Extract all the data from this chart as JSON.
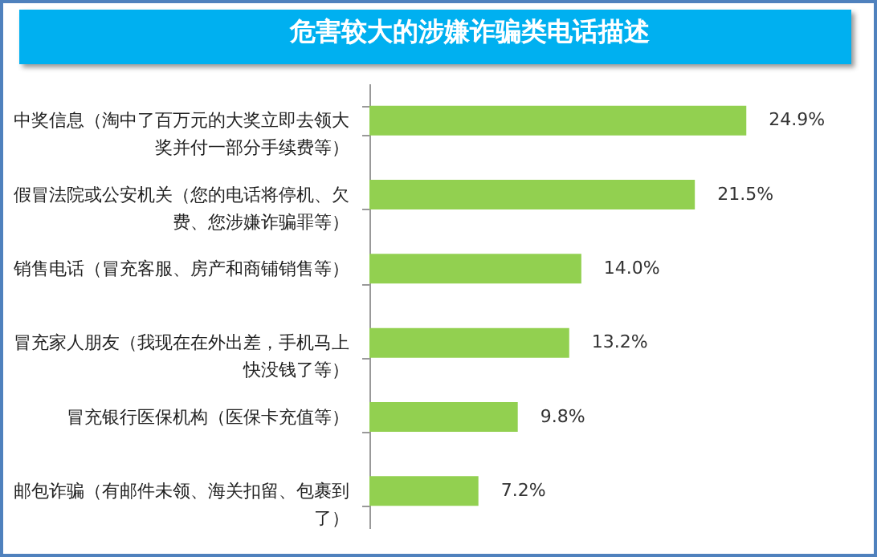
{
  "chart_data": {
    "type": "bar",
    "orientation": "horizontal",
    "title": "危害较大的涉嫌诈骗类电话描述",
    "categories": [
      "中奖信息（淘中了百万元的大奖立即去领大奖并付一部分手续费等）",
      "假冒法院或公安机关（您的电话将停机、欠费、您涉嫌诈骗罪等）",
      "销售电话（冒充客服、房产和商铺销售等）",
      "冒充家人朋友（我现在在外出差，手机马上快没钱了等）",
      "冒充银行医保机构（医保卡充值等）",
      "邮包诈骗（有邮件未领、海关扣留、包裹到了）"
    ],
    "values": [
      24.9,
      21.5,
      14.0,
      13.2,
      9.8,
      7.2
    ],
    "value_labels": [
      "24.9%",
      "21.5%",
      "14.0%",
      "13.2%",
      "9.8%",
      "7.2%"
    ],
    "color": "#92d050",
    "grid": false,
    "tick_labels": "y"
  }
}
